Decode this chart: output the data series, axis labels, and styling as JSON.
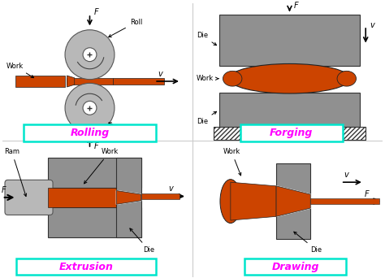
{
  "bg_color": "#ffffff",
  "gray": "#909090",
  "gray_light": "#b8b8b8",
  "orange": "#cc4400",
  "magenta": "#ff00ff",
  "cyan_border": "#00e5cc",
  "section_labels": [
    "Rolling",
    "Forging",
    "Extrusion",
    "Drawing"
  ]
}
